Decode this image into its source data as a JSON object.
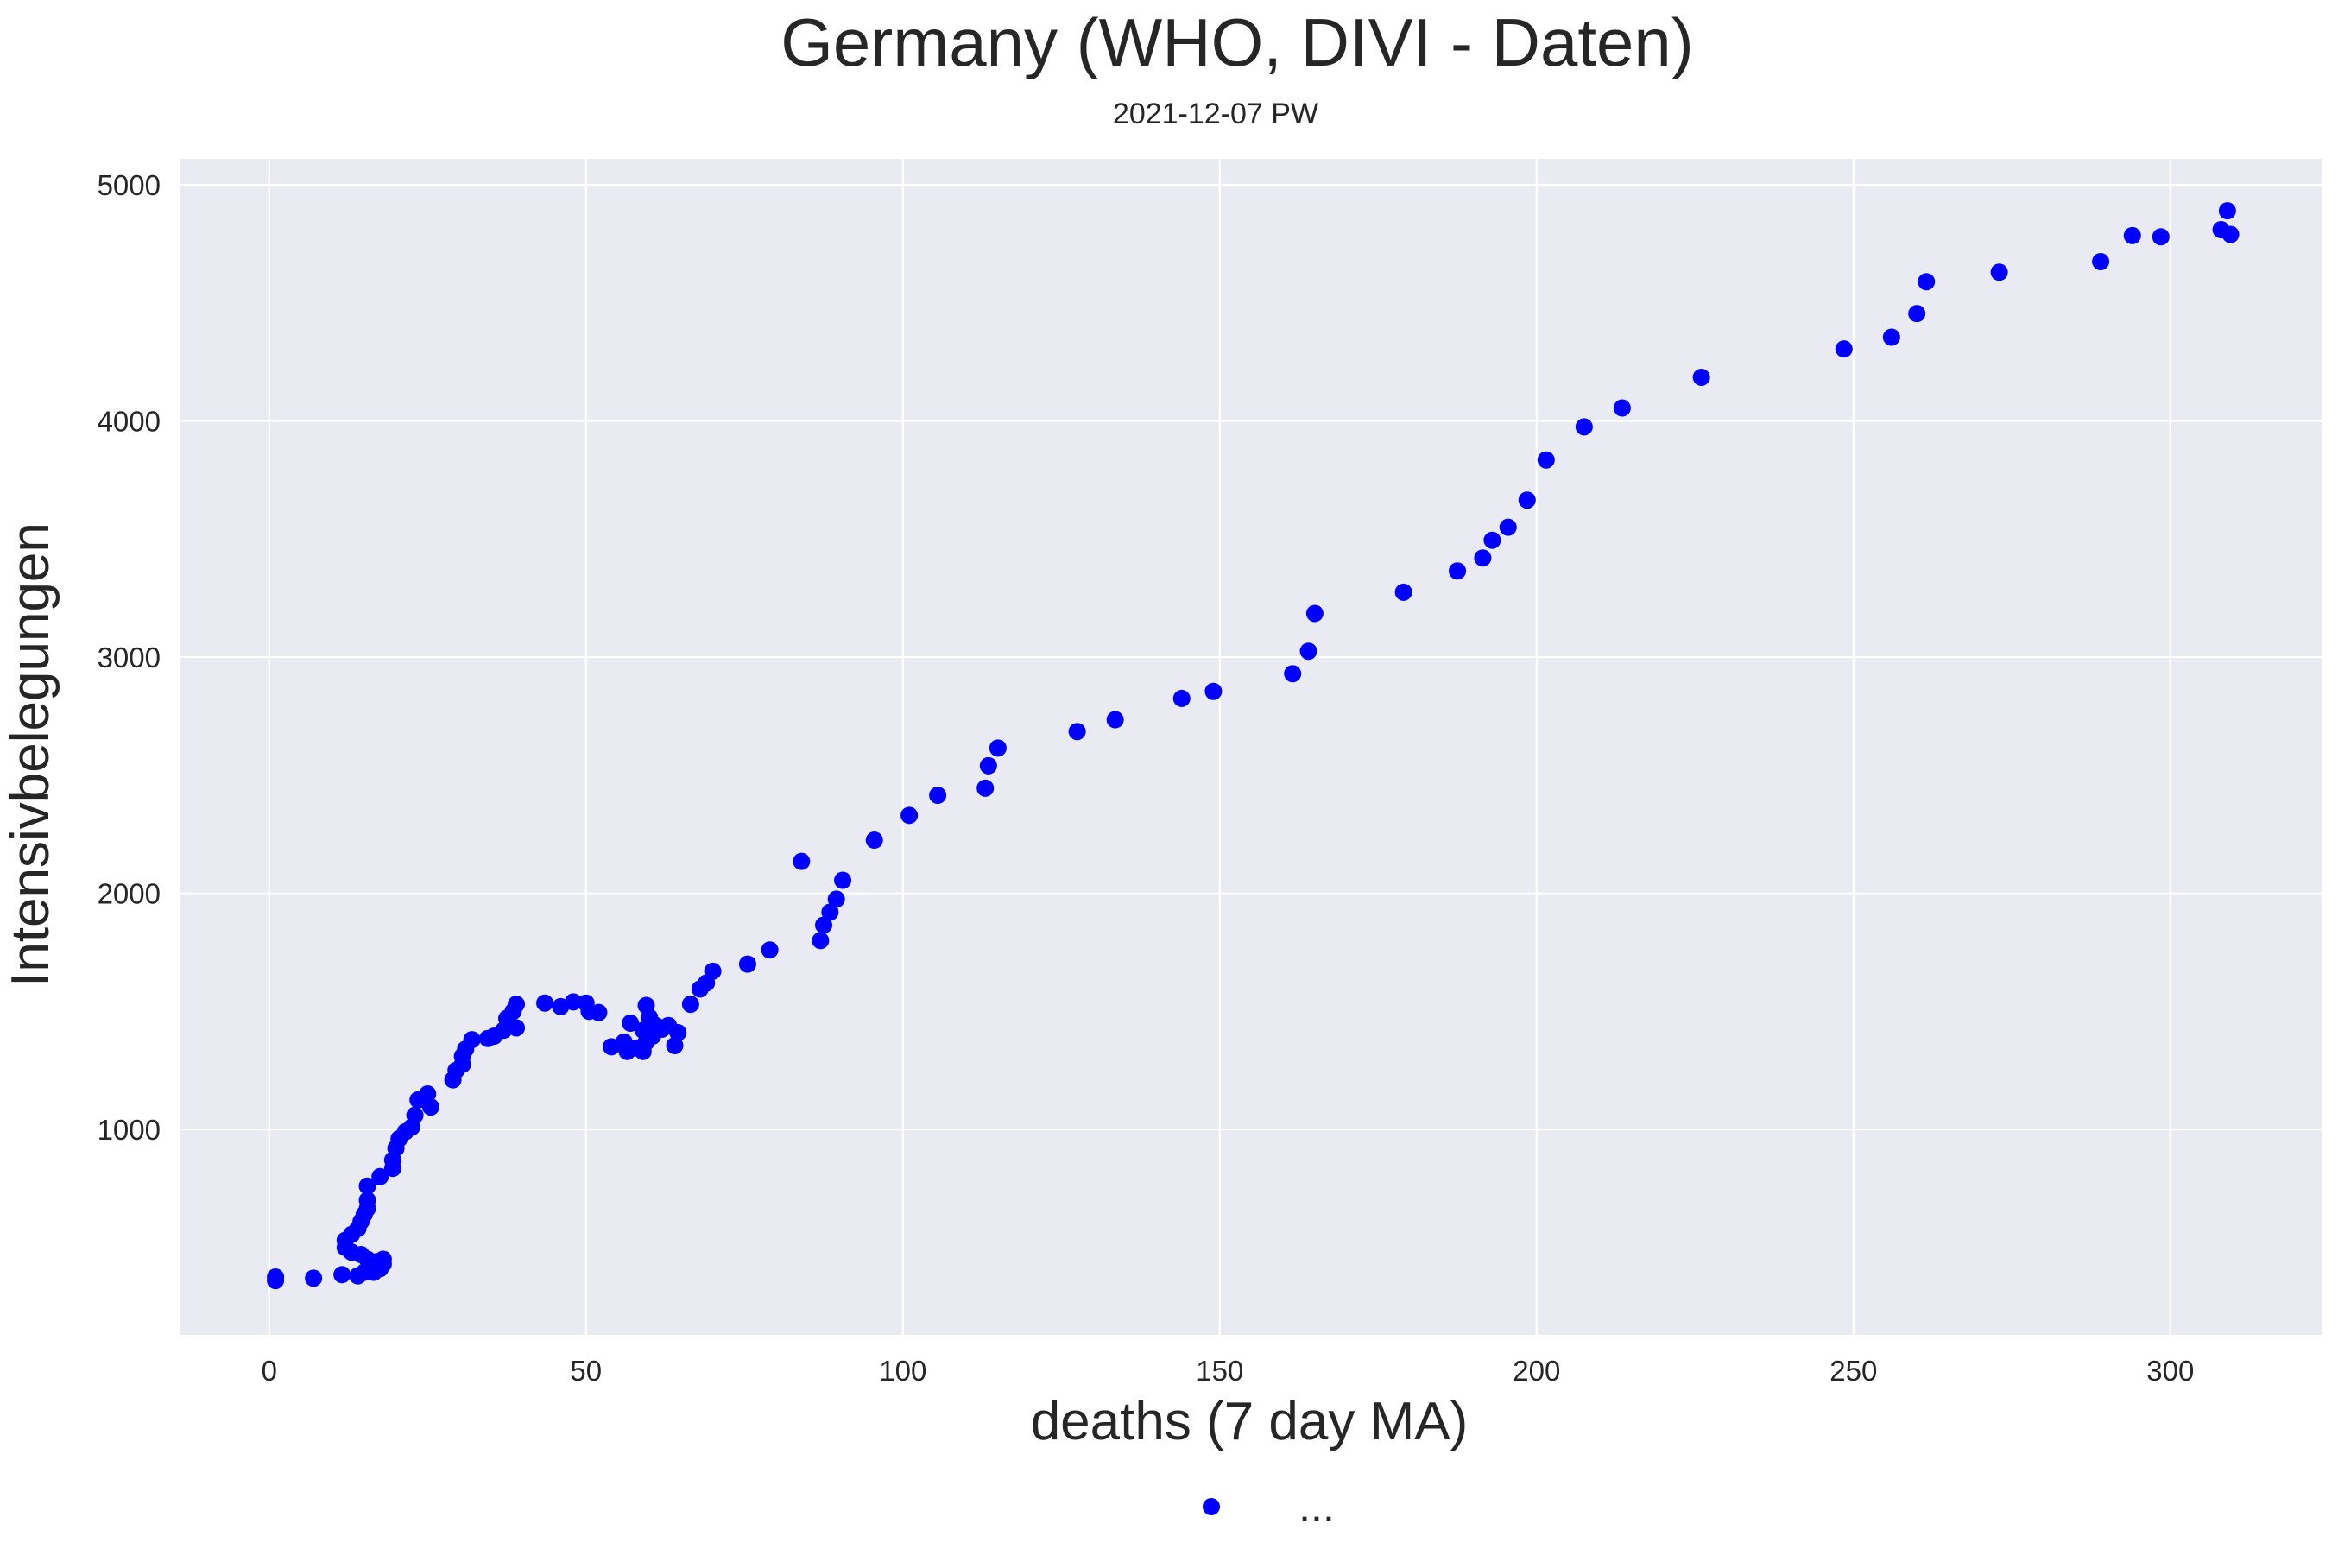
{
  "chart_data": {
    "type": "scatter",
    "title": "Germany (WHO, DIVI - Daten)",
    "subtitle": "2021-12-07 PW",
    "xlabel": "deaths (7 day MA)",
    "ylabel": "Intensivbelegungen",
    "xlim": [
      -14,
      324
    ],
    "ylim": [
      130,
      5110
    ],
    "xticks": [
      0,
      50,
      100,
      150,
      200,
      250,
      300
    ],
    "yticks": [
      1000,
      2000,
      3000,
      4000,
      5000
    ],
    "grid": true,
    "legend_placement": "bottom-center",
    "series": [
      {
        "name": "...",
        "color": "#0000ff",
        "marker": "circle",
        "points": [
          [
            1,
            360
          ],
          [
            1,
            375
          ],
          [
            7,
            370
          ],
          [
            11.5,
            385
          ],
          [
            14,
            380
          ],
          [
            15,
            395
          ],
          [
            16.5,
            395
          ],
          [
            17.5,
            410
          ],
          [
            18,
            430
          ],
          [
            18,
            450
          ],
          [
            17,
            440
          ],
          [
            15.5,
            450
          ],
          [
            14.5,
            470
          ],
          [
            13,
            480
          ],
          [
            12,
            500
          ],
          [
            12,
            530
          ],
          [
            13,
            555
          ],
          [
            14,
            580
          ],
          [
            14.5,
            610
          ],
          [
            15,
            640
          ],
          [
            15.5,
            665
          ],
          [
            15.5,
            700
          ],
          [
            15.5,
            760
          ],
          [
            17.5,
            800
          ],
          [
            19.5,
            835
          ],
          [
            19.5,
            870
          ],
          [
            20,
            920
          ],
          [
            20.5,
            960
          ],
          [
            21.5,
            990
          ],
          [
            22.5,
            1010
          ],
          [
            23,
            1060
          ],
          [
            23.5,
            1125
          ],
          [
            25,
            1150
          ],
          [
            25.5,
            1095
          ],
          [
            29,
            1210
          ],
          [
            29.5,
            1250
          ],
          [
            30.5,
            1275
          ],
          [
            30.5,
            1310
          ],
          [
            31,
            1340
          ],
          [
            32,
            1380
          ],
          [
            34.5,
            1385
          ],
          [
            35.5,
            1395
          ],
          [
            37,
            1420
          ],
          [
            37.5,
            1470
          ],
          [
            38.5,
            1500
          ],
          [
            39,
            1530
          ],
          [
            39,
            1430
          ],
          [
            43.5,
            1535
          ],
          [
            46,
            1520
          ],
          [
            48,
            1540
          ],
          [
            50,
            1535
          ],
          [
            50.5,
            1500
          ],
          [
            52,
            1495
          ],
          [
            54,
            1350
          ],
          [
            56,
            1370
          ],
          [
            56.5,
            1330
          ],
          [
            57,
            1450
          ],
          [
            58,
            1345
          ],
          [
            59,
            1330
          ],
          [
            59.5,
            1370
          ],
          [
            59,
            1420
          ],
          [
            59.5,
            1525
          ],
          [
            60,
            1475
          ],
          [
            60.5,
            1395
          ],
          [
            61,
            1440
          ],
          [
            62,
            1425
          ],
          [
            63,
            1440
          ],
          [
            64,
            1355
          ],
          [
            64.5,
            1410
          ],
          [
            66.5,
            1530
          ],
          [
            68,
            1595
          ],
          [
            69,
            1620
          ],
          [
            70,
            1670
          ],
          [
            75.5,
            1700
          ],
          [
            79,
            1760
          ],
          [
            84,
            2135
          ],
          [
            87,
            1800
          ],
          [
            87.5,
            1865
          ],
          [
            88.5,
            1920
          ],
          [
            89.5,
            1975
          ],
          [
            90.5,
            2055
          ],
          [
            95.5,
            2225
          ],
          [
            101,
            2330
          ],
          [
            105.5,
            2415
          ],
          [
            113,
            2445
          ],
          [
            113.5,
            2540
          ],
          [
            115,
            2615
          ],
          [
            127.5,
            2685
          ],
          [
            133.5,
            2735
          ],
          [
            144,
            2825
          ],
          [
            149,
            2855
          ],
          [
            161.5,
            2930
          ],
          [
            164,
            3025
          ],
          [
            165,
            3185
          ],
          [
            179,
            3275
          ],
          [
            187.5,
            3365
          ],
          [
            191.5,
            3420
          ],
          [
            193,
            3495
          ],
          [
            195.5,
            3550
          ],
          [
            198.5,
            3665
          ],
          [
            201.5,
            3835
          ],
          [
            207.5,
            3975
          ],
          [
            213.5,
            4055
          ],
          [
            226,
            4185
          ],
          [
            248.5,
            4305
          ],
          [
            256,
            4355
          ],
          [
            260,
            4455
          ],
          [
            261.5,
            4590
          ],
          [
            273,
            4630
          ],
          [
            289,
            4675
          ],
          [
            294,
            4785
          ],
          [
            298.5,
            4780
          ],
          [
            308,
            4810
          ],
          [
            309,
            4890
          ],
          [
            309.5,
            4790
          ]
        ]
      }
    ]
  },
  "colors": {
    "plot_background": "#eaeaf2",
    "grid": "#ffffff",
    "marker": "#0000ff"
  },
  "legend": {
    "label": "..."
  }
}
